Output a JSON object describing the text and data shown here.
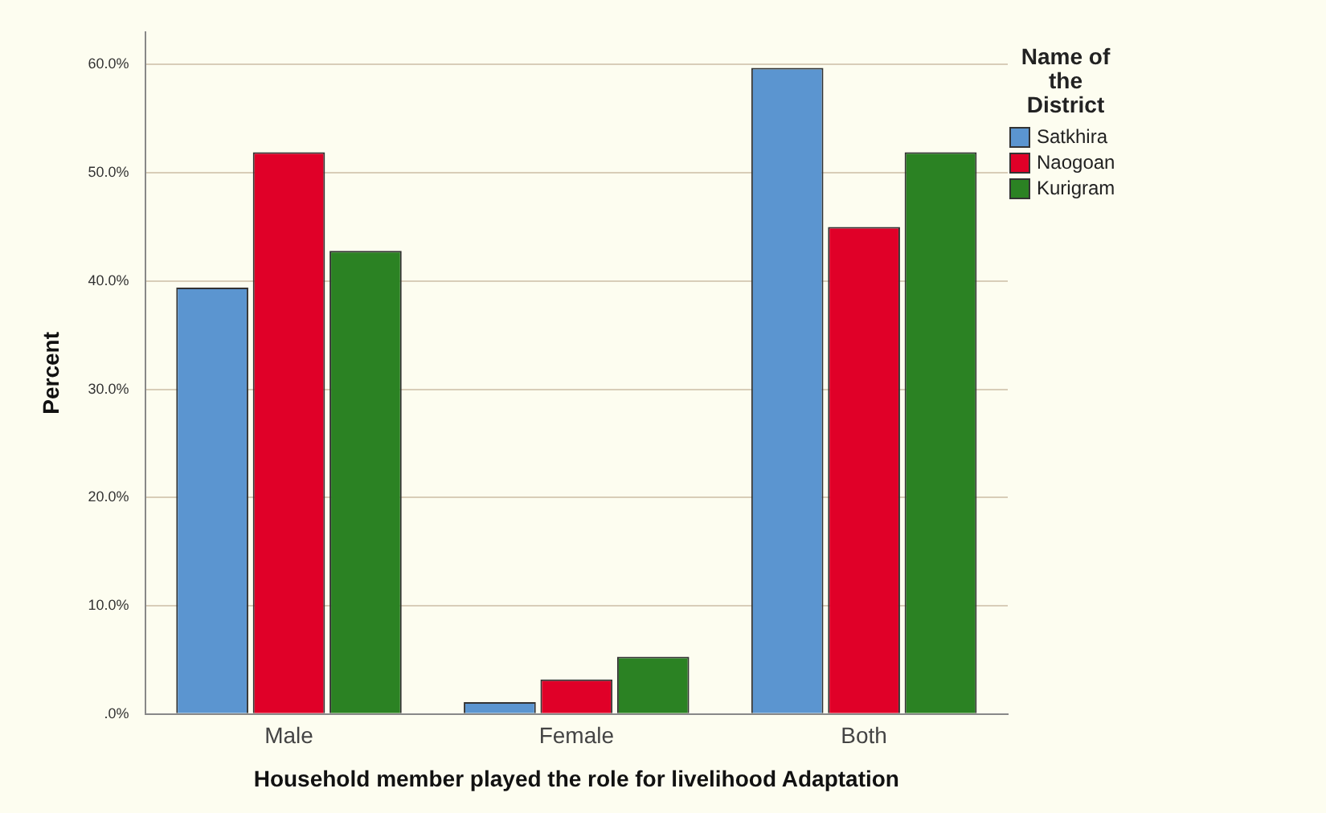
{
  "chart_data": {
    "type": "bar",
    "xlabel": "Household member played the role for livelihood Adaptation",
    "ylabel": "Percent",
    "legend_title": "Name of the District",
    "categories": [
      "Male",
      "Female",
      "Both"
    ],
    "series": [
      {
        "name": "Satkhira",
        "color": "#5b95d0",
        "values": [
          39.4,
          1.1,
          59.7
        ]
      },
      {
        "name": "Naogoan",
        "color": "#e00028",
        "values": [
          51.9,
          3.2,
          45.0
        ]
      },
      {
        "name": "Kurigram",
        "color": "#2b8223",
        "values": [
          42.8,
          5.3,
          51.9
        ]
      }
    ],
    "ylim": [
      0,
      63
    ],
    "yticks": [
      {
        "value": 0,
        "label": ".0%"
      },
      {
        "value": 10,
        "label": "10.0%"
      },
      {
        "value": 20,
        "label": "20.0%"
      },
      {
        "value": 30,
        "label": "30.0%"
      },
      {
        "value": 40,
        "label": "40.0%"
      },
      {
        "value": 50,
        "label": "50.0%"
      },
      {
        "value": 60,
        "label": "60.0%"
      }
    ],
    "grid": "y",
    "legend": "top right"
  }
}
